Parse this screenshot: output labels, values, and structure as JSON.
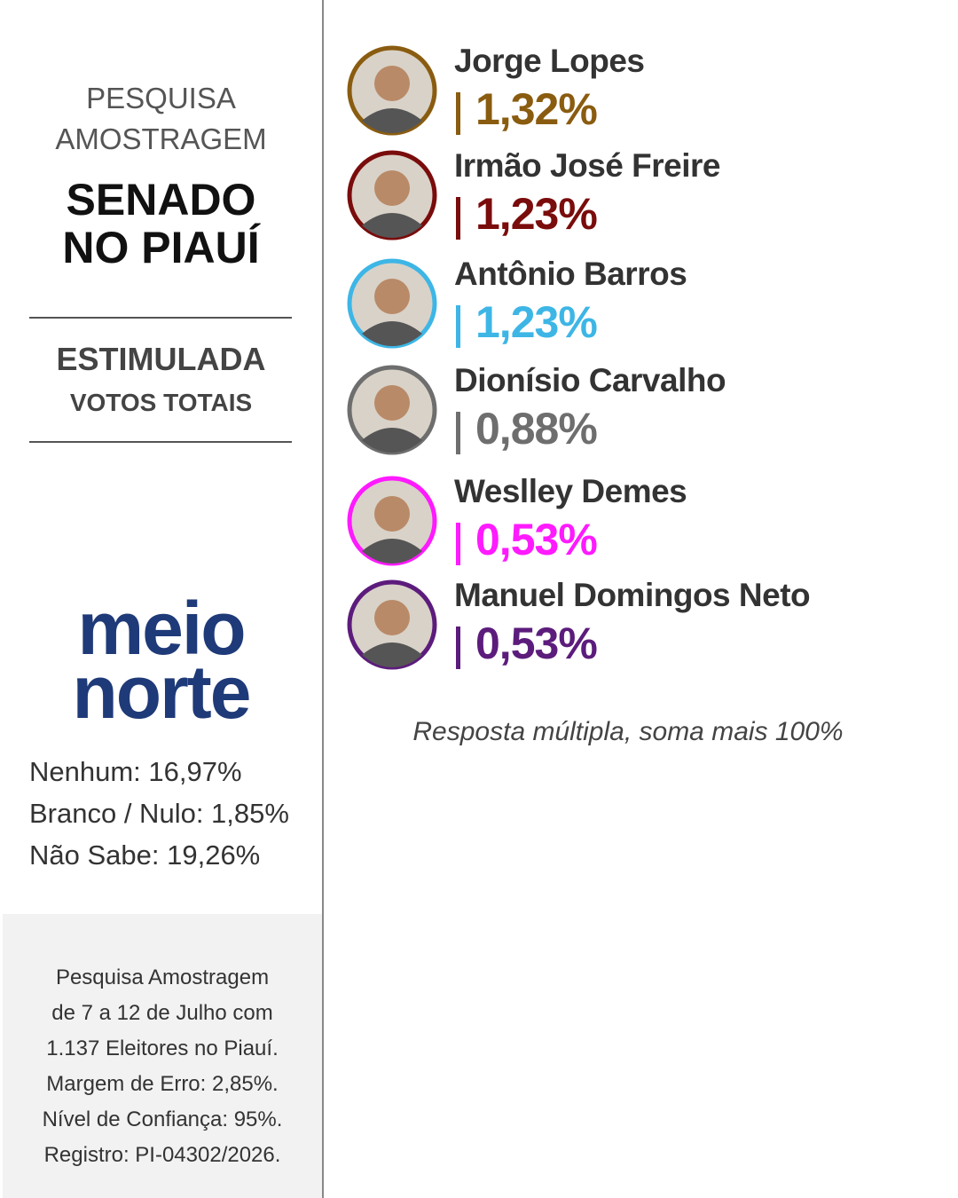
{
  "header": {
    "line1": "PESQUISA",
    "line2": "AMOSTRAGEM",
    "title1": "SENADO",
    "title2": "NO PIAUÍ"
  },
  "section": {
    "title": "ESTIMULADA",
    "subtitle": "VOTOS TOTAIS"
  },
  "logo": {
    "line1": "meio",
    "line2": "norte"
  },
  "others": [
    "Nenhum: 16,97%",
    "Branco / Nulo: 1,85%",
    "Não Sabe:  19,26%"
  ],
  "footnote": [
    "Pesquisa Amostragem",
    "de 7 a 12 de Julho com",
    "1.137 Eleitores no Piauí.",
    "Margem de Erro: 2,85%.",
    "Nível de Confiança: 95%.",
    "Registro: PI-04302/2026."
  ],
  "candidates": [
    {
      "name": "Jorge Lopes",
      "value": "1,32%",
      "color": "#8a5c10"
    },
    {
      "name": "Irmão José Freire",
      "value": "1,23%",
      "color": "#7a0c0c"
    },
    {
      "name": "Antônio Barros",
      "value": "1,23%",
      "color": "#3db6e6"
    },
    {
      "name": "Dionísio Carvalho",
      "value": "0,88%",
      "color": "#6e6e6e"
    },
    {
      "name": "Weslley Demes",
      "value": "0,53%",
      "color": "#ff1aff"
    },
    {
      "name": "Manuel Domingos Neto",
      "value": "0,53%",
      "color": "#5c1c7c"
    }
  ],
  "note": "Resposta múltipla, soma mais 100%"
}
